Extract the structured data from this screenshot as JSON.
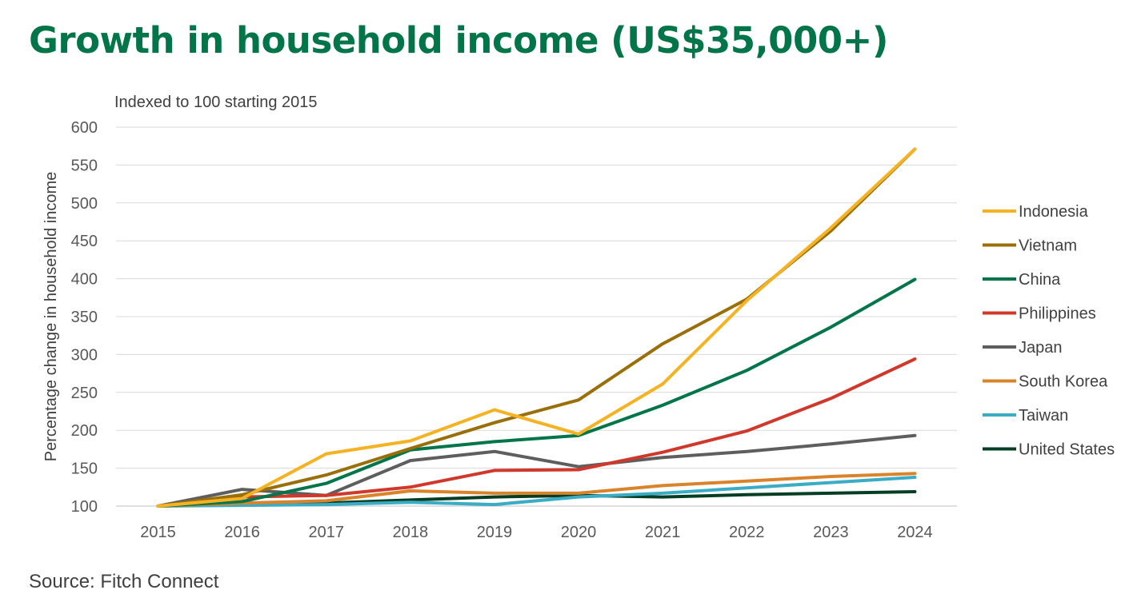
{
  "title": "Growth in household income (US$35,000+)",
  "subtitle": "Indexed to 100 starting 2015",
  "source": "Source: Fitch Connect",
  "chart_data": {
    "type": "line",
    "ylabel": "Percentage change in household income",
    "xlabel": "",
    "ylim": [
      100,
      600
    ],
    "yticks": [
      100,
      150,
      200,
      250,
      300,
      350,
      400,
      450,
      500,
      550,
      600
    ],
    "grid": true,
    "legend_position": "right",
    "categories": [
      "2015",
      "2016",
      "2017",
      "2018",
      "2019",
      "2020",
      "2021",
      "2022",
      "2023",
      "2024"
    ],
    "series": [
      {
        "name": "Indonesia",
        "color": "#f5b324",
        "values": [
          100,
          110,
          169,
          186,
          227,
          195,
          261,
          371,
          467,
          571
        ]
      },
      {
        "name": "Vietnam",
        "color": "#9a6f07",
        "values": [
          100,
          115,
          141,
          176,
          210,
          240,
          314,
          373,
          463,
          571
        ]
      },
      {
        "name": "China",
        "color": "#00754a",
        "values": [
          100,
          106,
          130,
          174,
          185,
          193,
          233,
          279,
          336,
          399
        ]
      },
      {
        "name": "Philippines",
        "color": "#d0382b",
        "values": [
          100,
          112,
          114,
          125,
          147,
          148,
          171,
          199,
          242,
          294
        ]
      },
      {
        "name": "Japan",
        "color": "#5e5e5e",
        "values": [
          100,
          122,
          114,
          160,
          172,
          152,
          164,
          172,
          182,
          193
        ]
      },
      {
        "name": "South Korea",
        "color": "#d9832b",
        "values": [
          100,
          104,
          107,
          120,
          117,
          117,
          127,
          133,
          139,
          143
        ]
      },
      {
        "name": "Taiwan",
        "color": "#3aacc4",
        "values": [
          100,
          101,
          102,
          105,
          102,
          112,
          117,
          124,
          131,
          138
        ]
      },
      {
        "name": "United States",
        "color": "#033e24",
        "values": [
          100,
          102,
          104,
          108,
          112,
          114,
          112,
          115,
          117,
          119
        ]
      }
    ]
  }
}
